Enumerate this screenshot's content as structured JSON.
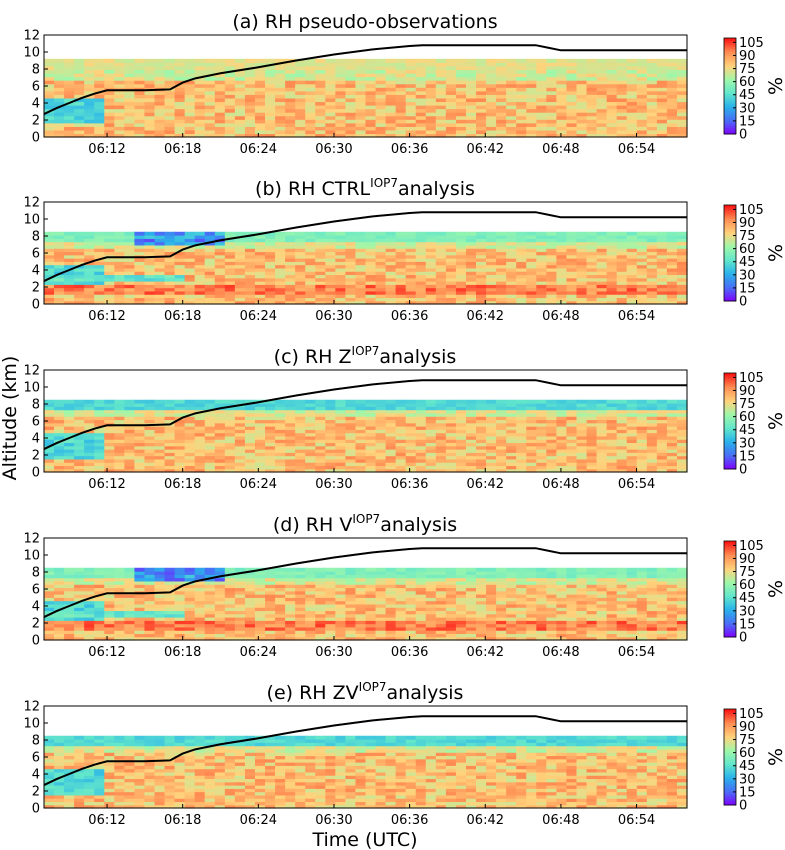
{
  "chart_data": {
    "type": "heatmap",
    "ylabel": "Altitude (km)",
    "xlabel": "Time (UTC)",
    "xticks": [
      "06:12",
      "06:18",
      "06:24",
      "06:30",
      "06:36",
      "06:42",
      "06:48",
      "06:54"
    ],
    "xlim": [
      "06:07",
      "06:58"
    ],
    "ylim": [
      0,
      12
    ],
    "yticks": [
      0,
      2,
      4,
      6,
      8,
      10,
      12
    ],
    "colorbar": {
      "label": "%",
      "ticks": [
        0,
        15,
        30,
        45,
        60,
        75,
        90,
        105
      ],
      "range": [
        0,
        110
      ],
      "colormap": "rainbow"
    },
    "line": {
      "color": "#000000",
      "x": [
        "06:07",
        "06:08",
        "06:09",
        "06:10",
        "06:11",
        "06:12",
        "06:15",
        "06:17",
        "06:18",
        "06:19",
        "06:21",
        "06:24",
        "06:27",
        "06:30",
        "06:33",
        "06:36",
        "06:37",
        "06:40",
        "06:43",
        "06:46",
        "06:47",
        "06:48",
        "06:51",
        "06:54",
        "06:58"
      ],
      "y": [
        2.7,
        3.4,
        4.0,
        4.6,
        5.1,
        5.5,
        5.5,
        5.6,
        6.4,
        6.9,
        7.5,
        8.2,
        9.0,
        9.7,
        10.3,
        10.7,
        10.8,
        10.8,
        10.8,
        10.8,
        10.5,
        10.2,
        10.2,
        10.2,
        10.2
      ]
    },
    "panels": [
      {
        "prefix": "(a) RH pseudo-observations",
        "sup": "",
        "suffix": "",
        "top_km": 9.2,
        "upper_band_rh": 68
      },
      {
        "prefix": "(b) RH CTRL",
        "sup": "IOP7",
        "suffix": "analysis",
        "top_km": 8.5,
        "upper_band_rh": 50
      },
      {
        "prefix": "(c) RH Z",
        "sup": "IOP7",
        "suffix": "analysis",
        "top_km": 8.5,
        "upper_band_rh": 38
      },
      {
        "prefix": "(d) RH V",
        "sup": "IOP7",
        "suffix": "analysis",
        "top_km": 8.5,
        "upper_band_rh": 50
      },
      {
        "prefix": "(e) RH ZV",
        "sup": "IOP7",
        "suffix": "analysis",
        "top_km": 8.5,
        "upper_band_rh": 38
      }
    ]
  }
}
